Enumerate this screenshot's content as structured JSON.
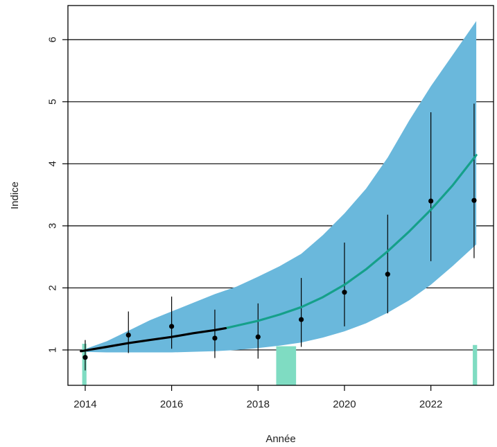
{
  "chart_data": {
    "type": "line",
    "title": "",
    "xlabel": "Année",
    "ylabel": "Indice",
    "xlim": [
      2013.6,
      2023.45
    ],
    "ylim": [
      0.43,
      6.55
    ],
    "x_ticks": [
      2014,
      2016,
      2018,
      2020,
      2022
    ],
    "x_tick_labels": [
      "2014",
      "2016",
      "2018",
      "2020",
      "2022"
    ],
    "y_ticks": [
      1,
      2,
      3,
      4,
      5,
      6
    ],
    "y_tick_labels": [
      "1",
      "2",
      "3",
      "4",
      "5",
      "6"
    ],
    "grid": "horizontal",
    "observed": {
      "x": [
        2014,
        2015,
        2016,
        2017,
        2018,
        2019,
        2020,
        2021,
        2022,
        2023
      ],
      "y": [
        0.88,
        1.24,
        1.38,
        1.19,
        1.21,
        1.49,
        1.93,
        2.22,
        3.4,
        3.41
      ],
      "lower": [
        0.67,
        0.95,
        1.02,
        0.87,
        0.86,
        1.05,
        1.38,
        1.59,
        2.43,
        2.48
      ],
      "upper": [
        1.16,
        1.62,
        1.86,
        1.65,
        1.75,
        2.16,
        2.73,
        3.18,
        4.83,
        4.97
      ]
    },
    "trend": {
      "x": [
        2013.9,
        2014.5,
        2015,
        2015.5,
        2016,
        2016.5,
        2017,
        2017.25,
        2017.5,
        2018,
        2018.5,
        2019,
        2019.5,
        2020,
        2020.5,
        2021,
        2021.5,
        2022,
        2022.5,
        2023.05
      ],
      "y": [
        0.98,
        1.05,
        1.11,
        1.16,
        1.21,
        1.27,
        1.32,
        1.35,
        1.39,
        1.47,
        1.57,
        1.69,
        1.85,
        2.05,
        2.3,
        2.59,
        2.91,
        3.26,
        3.65,
        4.14
      ],
      "lower": [
        0.97,
        0.96,
        0.96,
        0.96,
        0.96,
        0.97,
        0.98,
        0.99,
        1.0,
        1.03,
        1.07,
        1.12,
        1.2,
        1.3,
        1.43,
        1.6,
        1.8,
        2.05,
        2.35,
        2.7
      ],
      "upper": [
        0.99,
        1.14,
        1.31,
        1.48,
        1.62,
        1.76,
        1.9,
        1.96,
        2.02,
        2.18,
        2.35,
        2.55,
        2.85,
        3.2,
        3.6,
        4.1,
        4.7,
        5.25,
        5.75,
        6.3
      ],
      "split_x": 2017.25
    },
    "highlight_bars": [
      {
        "x0": 2013.93,
        "x1": 2014.03,
        "y0": 0.43,
        "y1": 1.1
      },
      {
        "x0": 2018.42,
        "x1": 2018.88,
        "y0": 0.43,
        "y1": 1.06
      },
      {
        "x0": 2022.97,
        "x1": 2023.07,
        "y0": 0.43,
        "y1": 1.08
      }
    ],
    "colors": {
      "band": "#6ab8dc",
      "trend_before": "#000000",
      "trend_after": "#15a08a",
      "highlight": "#7fdcc2",
      "points": "#000000",
      "grid": "#000000"
    }
  }
}
